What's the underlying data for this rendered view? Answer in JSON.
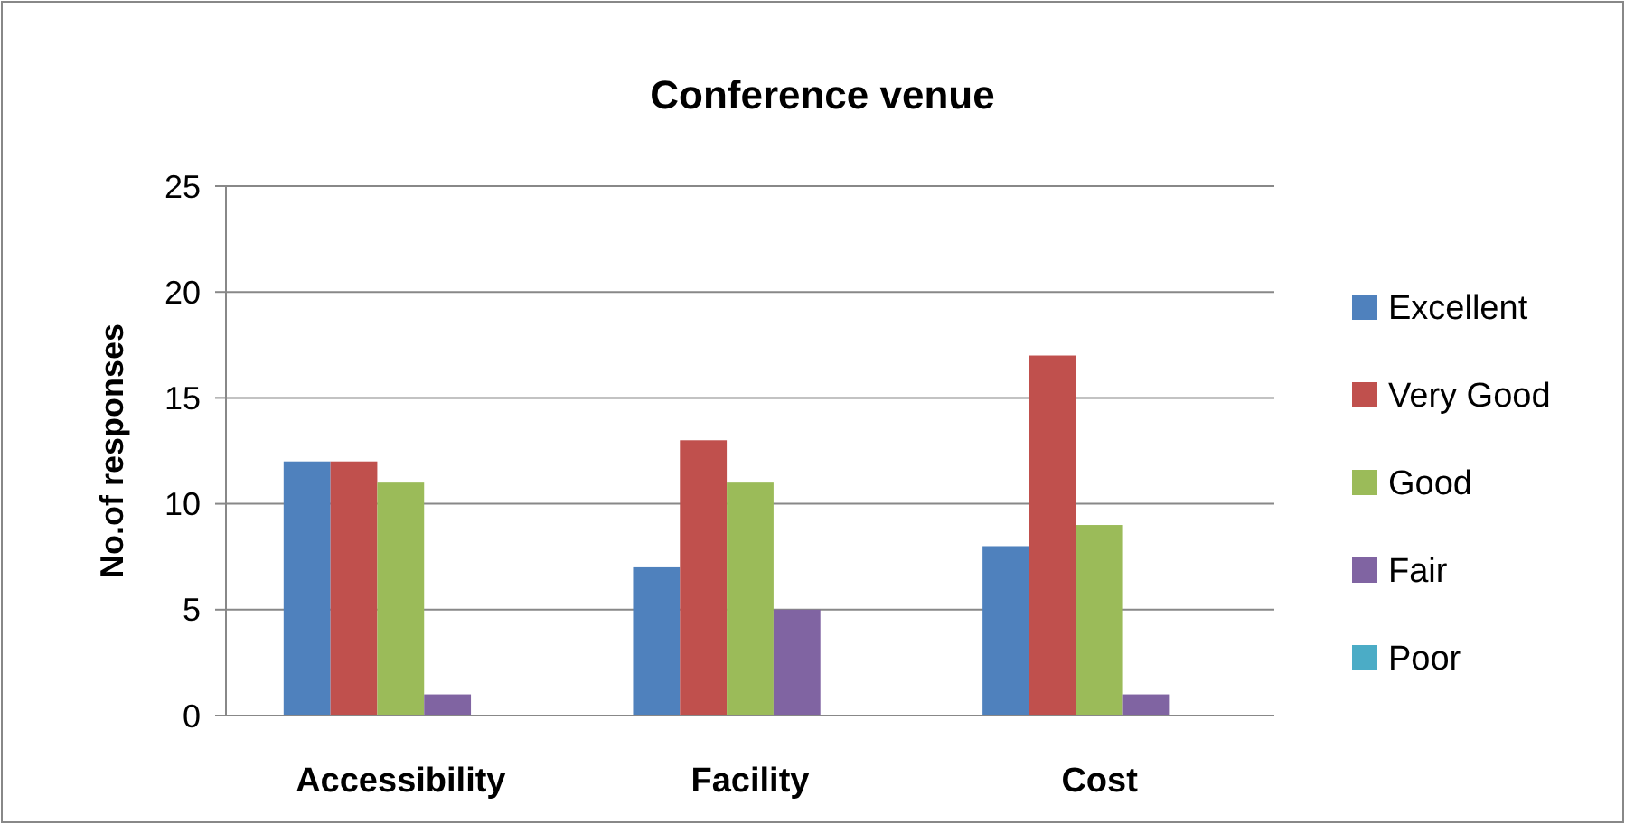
{
  "chart_data": {
    "type": "bar",
    "title": "Conference venue",
    "ylabel": "No.of responses",
    "categories": [
      "Accessibility",
      "Facility",
      "Cost"
    ],
    "series": [
      {
        "name": "Excellent",
        "color": "#4f81bd",
        "values": [
          12,
          7,
          8
        ]
      },
      {
        "name": "Very Good",
        "color": "#c0504d",
        "values": [
          12,
          13,
          17
        ]
      },
      {
        "name": "Good",
        "color": "#9bbb59",
        "values": [
          11,
          11,
          9
        ]
      },
      {
        "name": "Fair",
        "color": "#8064a2",
        "values": [
          1,
          5,
          1
        ]
      },
      {
        "name": "Poor",
        "color": "#4bacc6",
        "values": [
          0,
          0,
          0
        ]
      }
    ],
    "ylim": [
      0,
      25
    ],
    "yticks": [
      0,
      5,
      10,
      15,
      20,
      25
    ],
    "grid": "y",
    "legend": "right"
  }
}
